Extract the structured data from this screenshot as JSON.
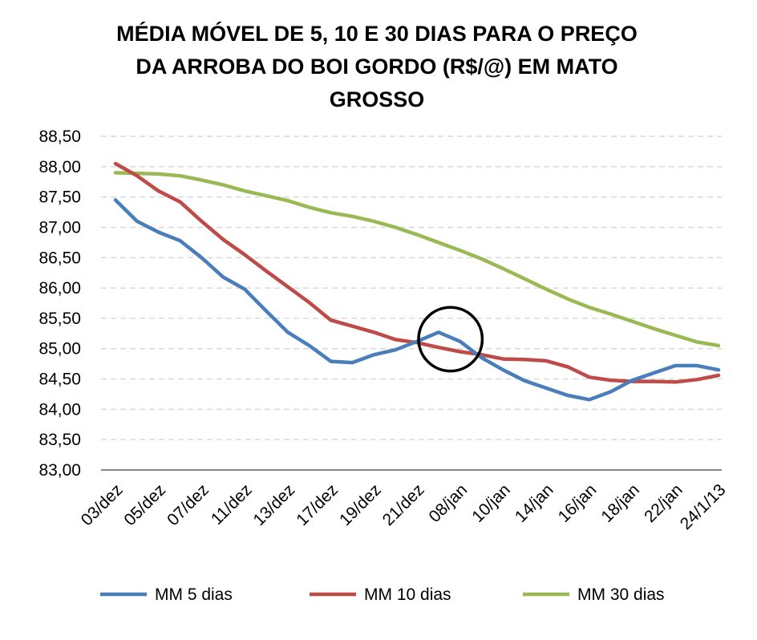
{
  "chart_data": {
    "type": "line",
    "title_lines": [
      "MÉDIA MÓVEL DE 5, 10 E 30 DIAS PARA O PREÇO",
      "DA  ARROBA DO BOI GORDO (R$/@) EM MATO",
      "GROSSO"
    ],
    "xlabel": "",
    "ylabel": "",
    "ylim": [
      83.0,
      88.5
    ],
    "yticks": [
      "88,50",
      "88,00",
      "87,50",
      "87,00",
      "86,50",
      "86,00",
      "85,50",
      "85,00",
      "84,50",
      "84,00",
      "83,50",
      "83,00"
    ],
    "tick_labels": [
      "03/dez",
      "05/dez",
      "07/dez",
      "11/dez",
      "13/dez",
      "17/dez",
      "19/dez",
      "21/dez",
      "08/jan",
      "10/jan",
      "14/jan",
      "16/jan",
      "18/jan",
      "22/jan",
      "24/1/13"
    ],
    "num_points": 29,
    "grid": true,
    "legend_position": "bottom",
    "colors": {
      "mm5": "#4a7ebb",
      "mm10": "#be4b48",
      "mm30": "#98b954",
      "circle": "#000000",
      "grid": "#d9d9d9",
      "axis": "#868686"
    },
    "series": [
      {
        "name": "MM 5 dias",
        "values": [
          87.45,
          87.1,
          86.92,
          86.78,
          86.5,
          86.18,
          85.98,
          85.62,
          85.27,
          85.05,
          84.79,
          84.77,
          84.9,
          84.98,
          85.12,
          85.27,
          85.12,
          84.85,
          84.65,
          84.47,
          84.35,
          84.23,
          84.16,
          84.29,
          84.48,
          84.6,
          84.72,
          84.72,
          84.65
        ]
      },
      {
        "name": "MM 10 dias",
        "values": [
          88.05,
          87.85,
          87.6,
          87.42,
          87.1,
          86.8,
          86.55,
          86.28,
          86.02,
          85.76,
          85.47,
          85.37,
          85.27,
          85.15,
          85.1,
          85.02,
          84.95,
          84.9,
          84.83,
          84.82,
          84.8,
          84.7,
          84.53,
          84.48,
          84.46,
          84.46,
          84.45,
          84.49,
          84.56
        ]
      },
      {
        "name": "MM 30 dias",
        "values": [
          87.9,
          87.89,
          87.88,
          87.85,
          87.78,
          87.7,
          87.6,
          87.52,
          87.44,
          87.33,
          87.24,
          87.18,
          87.1,
          87.0,
          86.88,
          86.75,
          86.62,
          86.48,
          86.32,
          86.15,
          85.98,
          85.82,
          85.68,
          85.57,
          85.45,
          85.33,
          85.22,
          85.11,
          85.05
        ]
      }
    ],
    "annotation": {
      "type": "circle",
      "at_point_index": 16,
      "value": 85.05,
      "radius_data": 0.5
    }
  }
}
